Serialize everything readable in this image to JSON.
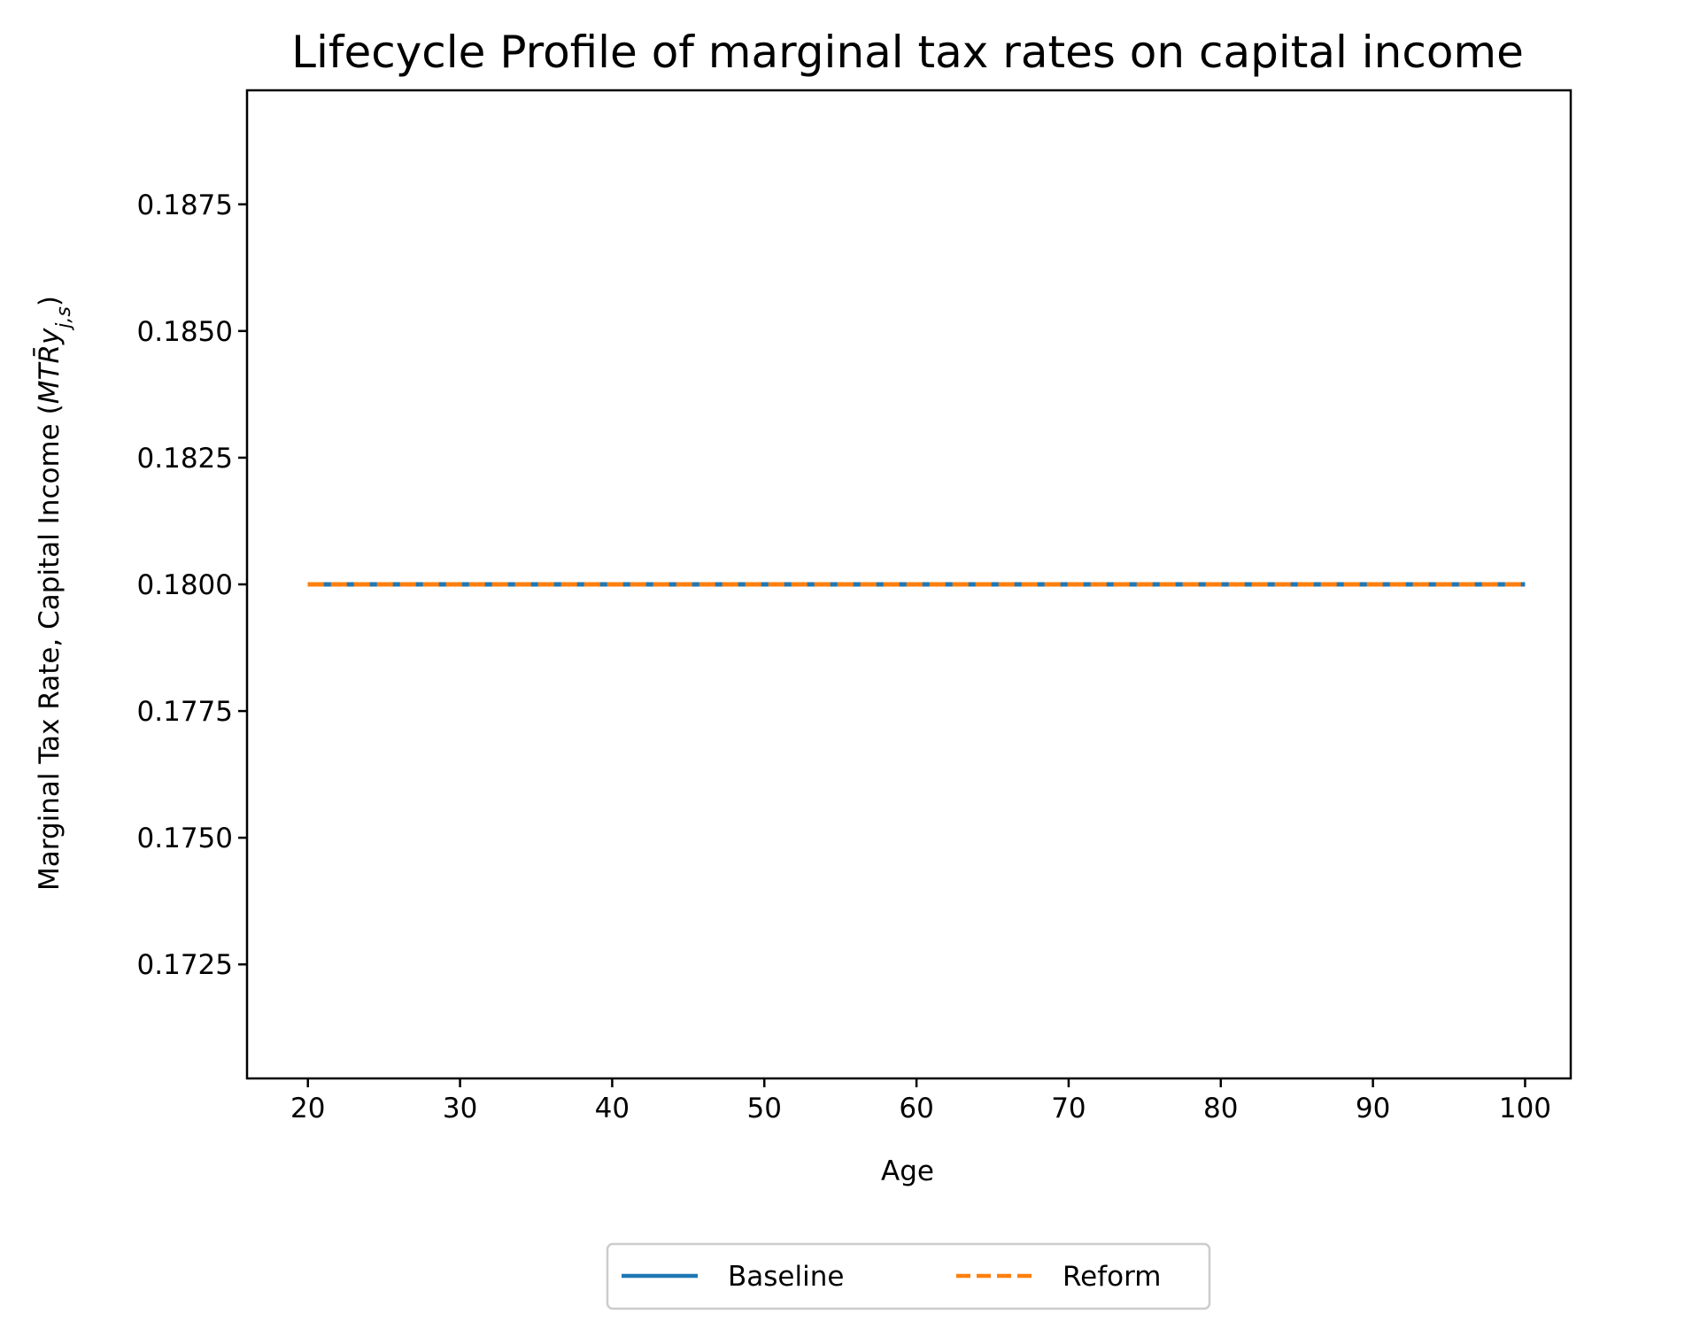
{
  "chart_data": {
    "type": "line",
    "title": "Lifecycle Profile of marginal tax rates on capital income",
    "xlabel": "Age",
    "ylabel": {
      "text": "Marginal Tax Rate, Capital Income",
      "math_open": "(",
      "math_main": "MTR̄y",
      "math_sub": "j,s",
      "math_close": ")"
    },
    "xlim": [
      16,
      103
    ],
    "ylim": [
      0.17025,
      0.18975
    ],
    "x_ticks": [
      20,
      30,
      40,
      50,
      60,
      70,
      80,
      90,
      100
    ],
    "y_ticks": [
      0.1725,
      0.175,
      0.1775,
      0.18,
      0.1825,
      0.185,
      0.1875
    ],
    "y_tick_labels": [
      "0.1725",
      "0.1750",
      "0.1775",
      "0.1800",
      "0.1825",
      "0.1850",
      "0.1875"
    ],
    "grid": false,
    "legend_placement": "bottom-center, below plot",
    "series": [
      {
        "name": "Baseline",
        "color": "#1f77b4",
        "style": "solid",
        "x": [
          20,
          100
        ],
        "y": [
          0.18,
          0.18
        ]
      },
      {
        "name": "Reform",
        "color": "#ff7f0e",
        "style": "dashed",
        "x": [
          20,
          100
        ],
        "y": [
          0.18,
          0.18
        ]
      }
    ]
  }
}
